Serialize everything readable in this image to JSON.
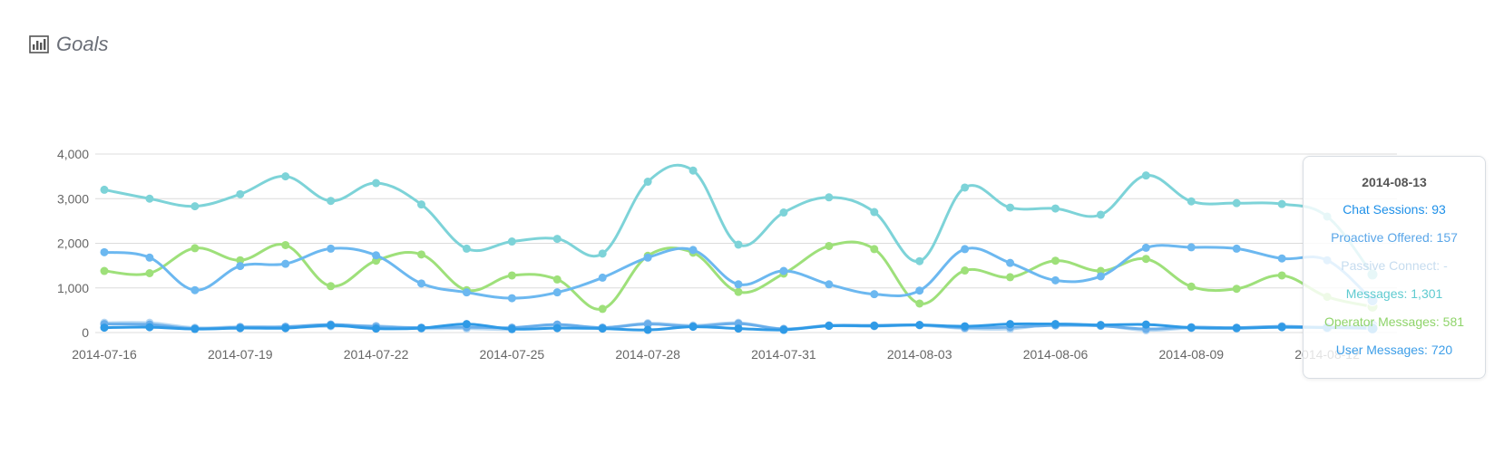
{
  "header": {
    "title": "Goals",
    "icon": "bar-chart-icon"
  },
  "chart_data": {
    "type": "line",
    "x": [
      "2014-07-16",
      "2014-07-17",
      "2014-07-18",
      "2014-07-19",
      "2014-07-20",
      "2014-07-21",
      "2014-07-22",
      "2014-07-23",
      "2014-07-24",
      "2014-07-25",
      "2014-07-26",
      "2014-07-27",
      "2014-07-28",
      "2014-07-29",
      "2014-07-30",
      "2014-07-31",
      "2014-08-01",
      "2014-08-02",
      "2014-08-03",
      "2014-08-04",
      "2014-08-05",
      "2014-08-06",
      "2014-08-07",
      "2014-08-08",
      "2014-08-09",
      "2014-08-10",
      "2014-08-11",
      "2014-08-12",
      "2014-08-13"
    ],
    "x_tick_labels": [
      "2014-07-16",
      "2014-07-19",
      "2014-07-22",
      "2014-07-25",
      "2014-07-28",
      "2014-07-31",
      "2014-08-03",
      "2014-08-06",
      "2014-08-09",
      "2014-08-12"
    ],
    "y_ticks": [
      0,
      1000,
      2000,
      3000,
      4000
    ],
    "y_tick_labels": [
      "0",
      "1,000",
      "2,000",
      "3,000",
      "4,000"
    ],
    "ylim": [
      0,
      4000
    ],
    "grid": true,
    "series": [
      {
        "name": "Messages",
        "color": "#7dd3d8",
        "values": [
          3200,
          3000,
          2830,
          3100,
          3500,
          2950,
          3350,
          2870,
          1880,
          2040,
          2100,
          1770,
          3380,
          3630,
          1970,
          2690,
          3030,
          2700,
          1600,
          3250,
          2800,
          2780,
          2640,
          3520,
          2940,
          2900,
          2880,
          2600,
          1301
        ]
      },
      {
        "name": "User Messages",
        "color": "#6cb8f0",
        "values": [
          1800,
          1680,
          950,
          1490,
          1540,
          1880,
          1730,
          1100,
          900,
          770,
          900,
          1230,
          1680,
          1850,
          1080,
          1380,
          1080,
          860,
          940,
          1870,
          1560,
          1170,
          1260,
          1900,
          1910,
          1880,
          1660,
          1620,
          720
        ]
      },
      {
        "name": "Operator Messages",
        "color": "#9ee07a",
        "values": [
          1380,
          1330,
          1890,
          1620,
          1960,
          1040,
          1610,
          1750,
          950,
          1280,
          1190,
          530,
          1720,
          1790,
          910,
          1320,
          1940,
          1870,
          650,
          1390,
          1240,
          1610,
          1380,
          1650,
          1030,
          980,
          1280,
          800,
          581
        ]
      },
      {
        "name": "Chat Sessions",
        "color": "#2f9ae6",
        "values": [
          110,
          120,
          80,
          100,
          100,
          160,
          90,
          100,
          190,
          80,
          100,
          90,
          60,
          130,
          90,
          60,
          150,
          150,
          170,
          140,
          190,
          190,
          170,
          180,
          110,
          100,
          120,
          110,
          93
        ]
      },
      {
        "name": "Proactive Offered",
        "color": "#6aaeea",
        "values": [
          190,
          180,
          90,
          120,
          130,
          180,
          130,
          110,
          120,
          110,
          180,
          110,
          190,
          140,
          200,
          80,
          160,
          160,
          170,
          110,
          120,
          160,
          150,
          80,
          120,
          110,
          140,
          120,
          157
        ]
      },
      {
        "name": "Passive Connect",
        "color": "#b8d8f2",
        "values": [
          220,
          220,
          110,
          130,
          120,
          140,
          150,
          90,
          90,
          70,
          170,
          110,
          210,
          160,
          220,
          80,
          150,
          140,
          160,
          90,
          80,
          190,
          160,
          50,
          100,
          90,
          130,
          110,
          null
        ]
      }
    ]
  },
  "tooltip": {
    "title": "2014-08-13",
    "rows": [
      {
        "label": "Chat Sessions: 93",
        "color": "#1e90e8"
      },
      {
        "label": "Proactive Offered: 157",
        "color": "#5aa6e8"
      },
      {
        "label": "Passive Connect: -",
        "color": "#c6dcef"
      },
      {
        "label": "Messages: 1,301",
        "color": "#5fcbd0"
      },
      {
        "label": "Operator Messages: 581",
        "color": "#8fd46a"
      },
      {
        "label": "User Messages: 720",
        "color": "#3d9ee8"
      }
    ]
  }
}
